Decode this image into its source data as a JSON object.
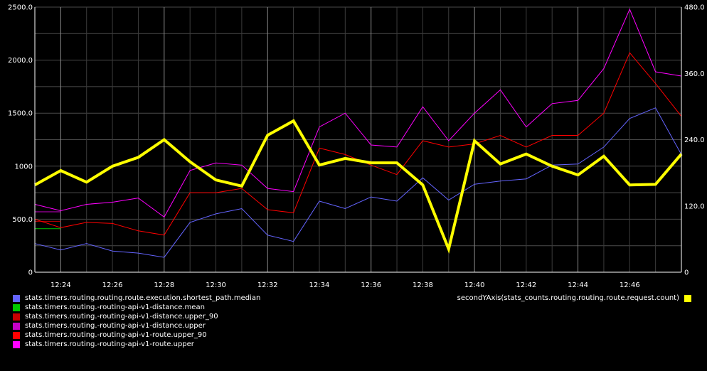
{
  "chart_data": {
    "type": "line",
    "x": [
      "12:23",
      "12:24",
      "12:25",
      "12:26",
      "12:27",
      "12:28",
      "12:29",
      "12:30",
      "12:31",
      "12:32",
      "12:33",
      "12:34",
      "12:35",
      "12:36",
      "12:37",
      "12:38",
      "12:39",
      "12:40",
      "12:41",
      "12:42",
      "12:43",
      "12:44",
      "12:45",
      "12:46",
      "12:47",
      "12:48"
    ],
    "x_tick_labels": [
      "12:24",
      "12:26",
      "12:28",
      "12:30",
      "12:32",
      "12:34",
      "12:36",
      "12:38",
      "12:40",
      "12:42",
      "12:44",
      "12:46"
    ],
    "y_left": {
      "ylim": [
        0,
        2500
      ],
      "ticks": [
        "0",
        "500.0",
        "1000",
        "1500.0",
        "2000.0",
        "2500.0"
      ]
    },
    "y_right": {
      "ylim": [
        0,
        480
      ],
      "ticks": [
        "0",
        "120.0",
        "240.0",
        "360.0",
        "480.0"
      ]
    },
    "grid": true,
    "background": "#000000",
    "series": [
      {
        "name": "stats.timers.routing.routing.route.execution.shortest_path.median",
        "color": "#6464ff",
        "axis": "left",
        "width": 1,
        "values": [
          270,
          210,
          270,
          200,
          180,
          140,
          470,
          550,
          600,
          350,
          290,
          670,
          600,
          710,
          670,
          890,
          680,
          830,
          860,
          880,
          1010,
          1020,
          1180,
          1450,
          1550,
          1110
        ]
      },
      {
        "name": "stats.timers.routing.-routing-api-v1-distance.mean",
        "color": "#00c800",
        "axis": "left",
        "width": 1,
        "values": [
          410,
          410,
          null,
          null,
          null,
          null,
          null,
          null,
          null,
          null,
          null,
          null,
          null,
          null,
          null,
          null,
          null,
          null,
          null,
          null,
          null,
          null,
          null,
          null,
          null,
          null
        ]
      },
      {
        "name": "stats.timers.routing.-routing-api-v1-distance.upper_90",
        "color": "#c80000",
        "axis": "left",
        "width": 1,
        "values": [
          480,
          480,
          null,
          null,
          null,
          null,
          null,
          null,
          null,
          null,
          null,
          null,
          null,
          null,
          null,
          null,
          null,
          null,
          null,
          null,
          null,
          null,
          null,
          null,
          null,
          null
        ]
      },
      {
        "name": "stats.timers.routing.-routing-api-v1-distance.upper",
        "color": "#c800c8",
        "axis": "left",
        "width": 1,
        "values": [
          570,
          570,
          null,
          null,
          null,
          null,
          null,
          null,
          null,
          null,
          null,
          null,
          null,
          null,
          null,
          null,
          null,
          null,
          null,
          null,
          null,
          null,
          null,
          null,
          null,
          null
        ]
      },
      {
        "name": "stats.timers.routing.-routing-api-v1-route.upper_90",
        "color": "#ff0000",
        "axis": "left",
        "width": 1,
        "values": [
          500,
          420,
          470,
          460,
          390,
          350,
          750,
          750,
          790,
          590,
          560,
          1170,
          1110,
          1010,
          920,
          1240,
          1180,
          1210,
          1290,
          1180,
          1290,
          1290,
          1500,
          2070,
          1780,
          1470
        ]
      },
      {
        "name": "stats.timers.routing.-routing-api-v1-route.upper",
        "color": "#ff00ff",
        "axis": "left",
        "width": 1,
        "values": [
          640,
          580,
          640,
          660,
          700,
          520,
          960,
          1030,
          1010,
          790,
          760,
          1370,
          1500,
          1200,
          1180,
          1560,
          1240,
          1500,
          1720,
          1370,
          1590,
          1620,
          1920,
          2480,
          1890,
          1850
        ]
      },
      {
        "name": "secondYAxis(stats_counts.routing.routing.route.request.count)",
        "color": "#ffff00",
        "axis": "right",
        "width": 4,
        "values": [
          158,
          184,
          163,
          192,
          208,
          240,
          200,
          167,
          156,
          248,
          274,
          194,
          206,
          198,
          198,
          158,
          42,
          238,
          196,
          214,
          192,
          176,
          210,
          158,
          159,
          214
        ]
      }
    ]
  }
}
